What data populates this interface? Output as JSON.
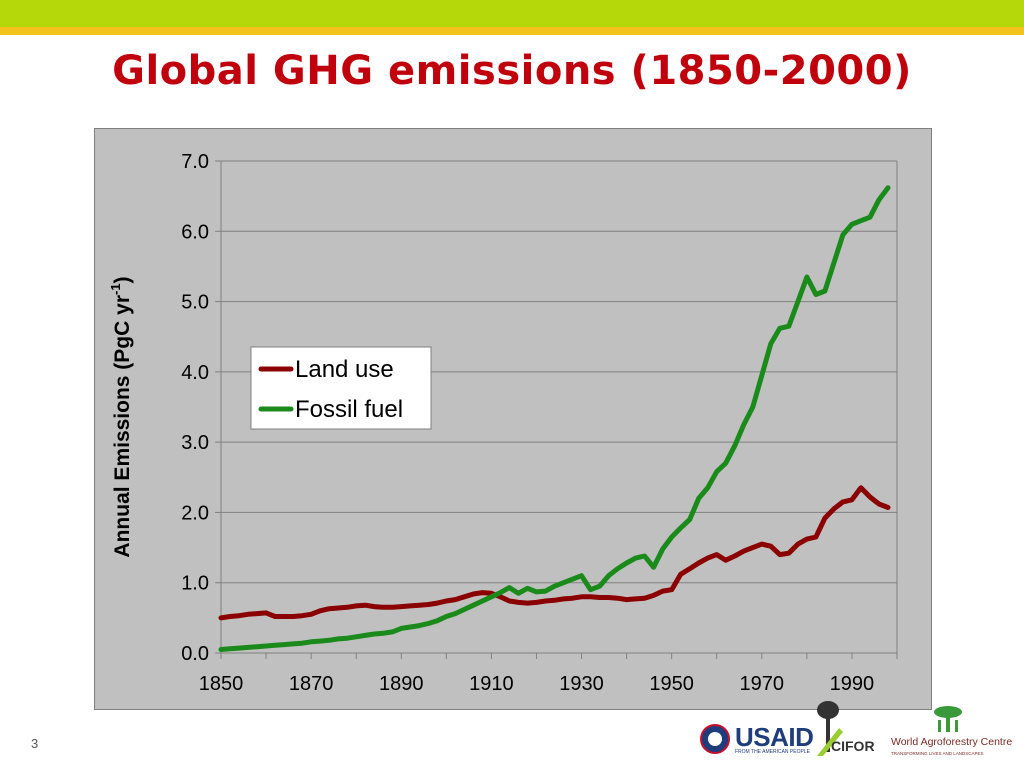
{
  "slide": {
    "title": "Global GHG emissions (1850-2000)",
    "page_number": "3"
  },
  "logos": {
    "usaid": "USAID",
    "usaid_tagline": "FROM THE AMERICAN PEOPLE",
    "cifor": "CIFOR",
    "icraf": "World Agroforestry Centre",
    "icraf_tagline": "TRANSFORMING LIVES AND LANDSCAPES"
  },
  "colors": {
    "title": "#c0000d",
    "top_band": "#b5d80a",
    "accent_band": "#f5c21b",
    "plot_background": "#c0c0c0",
    "land_use": "#8b0000",
    "fossil_fuel": "#1a8a1a"
  },
  "chart_data": {
    "type": "line",
    "title": "",
    "xlabel": "",
    "ylabel": "Annual Emissions (PgC yr-1)",
    "ylabel_main": "Annual Emissions (PgC yr",
    "ylabel_sup": "-1",
    "ylabel_close": ")",
    "xlim": [
      1850,
      2000
    ],
    "ylim": [
      0,
      7
    ],
    "x_ticks": [
      "1850",
      "1870",
      "1890",
      "1910",
      "1930",
      "1950",
      "1970",
      "1990"
    ],
    "y_ticks": [
      "0.0",
      "1.0",
      "2.0",
      "3.0",
      "4.0",
      "5.0",
      "6.0",
      "7.0"
    ],
    "grid": "horizontal",
    "legend_position": "middle-left",
    "x": [
      1850,
      1852,
      1854,
      1856,
      1858,
      1860,
      1862,
      1864,
      1866,
      1868,
      1870,
      1872,
      1874,
      1876,
      1878,
      1880,
      1882,
      1884,
      1886,
      1888,
      1890,
      1892,
      1894,
      1896,
      1898,
      1900,
      1902,
      1904,
      1906,
      1908,
      1910,
      1912,
      1914,
      1916,
      1918,
      1920,
      1922,
      1924,
      1926,
      1928,
      1930,
      1932,
      1934,
      1936,
      1938,
      1940,
      1942,
      1944,
      1946,
      1948,
      1950,
      1952,
      1954,
      1956,
      1958,
      1960,
      1962,
      1964,
      1966,
      1968,
      1970,
      1972,
      1974,
      1976,
      1978,
      1980,
      1982,
      1984,
      1986,
      1988,
      1990,
      1992,
      1994,
      1996,
      1998
    ],
    "series": [
      {
        "name": "Land use",
        "values": [
          0.5,
          0.52,
          0.53,
          0.55,
          0.56,
          0.57,
          0.52,
          0.52,
          0.52,
          0.53,
          0.55,
          0.6,
          0.63,
          0.64,
          0.65,
          0.67,
          0.68,
          0.66,
          0.65,
          0.65,
          0.66,
          0.67,
          0.68,
          0.69,
          0.71,
          0.74,
          0.76,
          0.8,
          0.84,
          0.86,
          0.85,
          0.8,
          0.74,
          0.72,
          0.71,
          0.72,
          0.74,
          0.75,
          0.77,
          0.78,
          0.8,
          0.8,
          0.79,
          0.79,
          0.78,
          0.76,
          0.77,
          0.78,
          0.82,
          0.88,
          0.9,
          1.12,
          1.2,
          1.28,
          1.35,
          1.4,
          1.32,
          1.38,
          1.45,
          1.5,
          1.55,
          1.52,
          1.4,
          1.42,
          1.55,
          1.62,
          1.65,
          1.92,
          2.05,
          2.15,
          2.18,
          2.35,
          2.22,
          2.12,
          2.07
        ]
      },
      {
        "name": "Fossil fuel",
        "values": [
          0.05,
          0.06,
          0.07,
          0.08,
          0.09,
          0.1,
          0.11,
          0.12,
          0.13,
          0.14,
          0.16,
          0.17,
          0.18,
          0.2,
          0.21,
          0.23,
          0.25,
          0.27,
          0.28,
          0.3,
          0.35,
          0.37,
          0.39,
          0.42,
          0.46,
          0.52,
          0.56,
          0.62,
          0.68,
          0.74,
          0.8,
          0.86,
          0.93,
          0.85,
          0.92,
          0.87,
          0.88,
          0.95,
          1.0,
          1.05,
          1.1,
          0.9,
          0.95,
          1.1,
          1.2,
          1.28,
          1.35,
          1.38,
          1.22,
          1.48,
          1.65,
          1.78,
          1.9,
          2.2,
          2.35,
          2.58,
          2.7,
          2.95,
          3.25,
          3.5,
          3.95,
          4.4,
          4.62,
          4.65,
          5.0,
          5.35,
          5.1,
          5.15,
          5.55,
          5.95,
          6.1,
          6.15,
          6.2,
          6.45,
          6.62
        ]
      }
    ]
  }
}
